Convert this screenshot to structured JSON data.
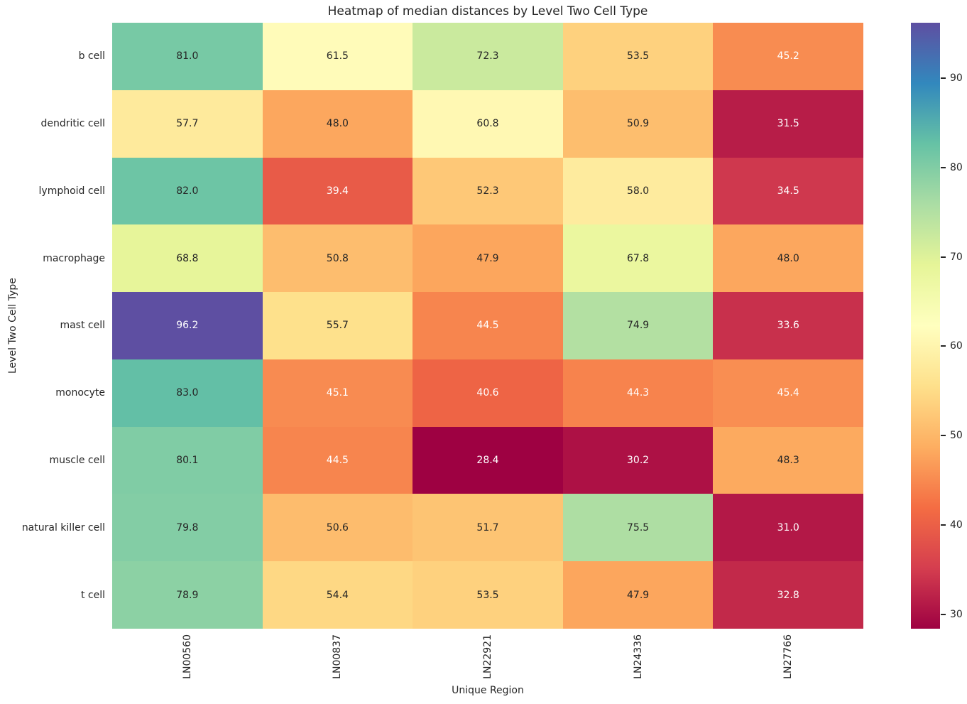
{
  "chart_data": {
    "type": "heatmap",
    "title": "Heatmap of median distances by Level Two Cell Type",
    "xlabel": "Unique Region",
    "ylabel": "Level Two Cell Type",
    "x_categories": [
      "LN00560",
      "LN00837",
      "LN22921",
      "LN24336",
      "LN27766"
    ],
    "y_categories": [
      "b cell",
      "dendritic cell",
      "lymphoid cell",
      "macrophage",
      "mast cell",
      "monocyte",
      "muscle cell",
      "natural killer cell",
      "t cell"
    ],
    "values": [
      [
        81.0,
        61.5,
        72.3,
        53.5,
        45.2
      ],
      [
        57.7,
        48.0,
        60.8,
        50.9,
        31.5
      ],
      [
        82.0,
        39.4,
        52.3,
        58.0,
        34.5
      ],
      [
        68.8,
        50.8,
        47.9,
        67.8,
        48.0
      ],
      [
        96.2,
        55.7,
        44.5,
        74.9,
        33.6
      ],
      [
        83.0,
        45.1,
        40.6,
        44.3,
        45.4
      ],
      [
        80.1,
        44.5,
        28.4,
        30.2,
        48.3
      ],
      [
        79.8,
        50.6,
        51.7,
        75.5,
        31.0
      ],
      [
        78.9,
        54.4,
        53.5,
        47.9,
        32.8
      ]
    ],
    "vmin": 28.4,
    "vmax": 96.2,
    "annotation_decimals": 1,
    "colormap": {
      "name": "Spectral",
      "anchors": [
        "#9e0142",
        "#d53e4f",
        "#f46d43",
        "#fdae61",
        "#fee08b",
        "#ffffbf",
        "#e6f598",
        "#abdda4",
        "#66c2a5",
        "#3288bd",
        "#5e4fa2"
      ]
    },
    "colorbar": {
      "position": "right",
      "ticks": [
        30,
        40,
        50,
        60,
        70,
        80,
        90
      ]
    },
    "text_colors": {
      "dark": "#262626",
      "light": "#ffffff"
    },
    "luminance_threshold": 0.408,
    "grid": false,
    "legend": false
  }
}
